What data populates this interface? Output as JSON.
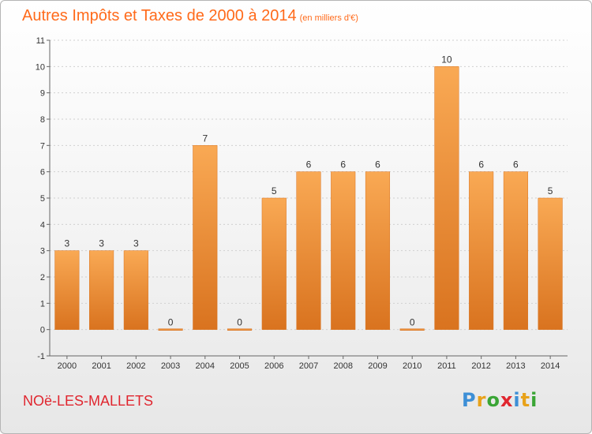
{
  "header": {
    "title": "Autres Impôts et Taxes de 2000 à 2014",
    "subtitle": "(en milliers d'€)"
  },
  "footer": {
    "commune": "NOë-LES-MALLETS",
    "logo_letters": [
      "P",
      "r",
      "o",
      "x",
      "i",
      "t",
      "i"
    ],
    "logo_colors": [
      "#3d8fd6",
      "#e8a21a",
      "#3aa535",
      "#e0262f",
      "#3d8fd6",
      "#e8a21a",
      "#3aa535"
    ]
  },
  "chart_data": {
    "type": "bar",
    "categories": [
      "2000",
      "2001",
      "2002",
      "2003",
      "2004",
      "2005",
      "2006",
      "2007",
      "2008",
      "2009",
      "2010",
      "2011",
      "2012",
      "2013",
      "2014"
    ],
    "values": [
      3,
      3,
      3,
      0,
      7,
      0,
      5,
      6,
      6,
      6,
      0,
      10,
      6,
      6,
      5
    ],
    "data_labels": [
      "3",
      "3",
      "3",
      "0",
      "7",
      "0",
      "5",
      "6",
      "6",
      "6",
      "0",
      "10",
      "6",
      "6",
      "5"
    ],
    "ylim": [
      -1,
      11
    ],
    "yticks": [
      "-1",
      "0",
      "1",
      "2",
      "3",
      "4",
      "5",
      "6",
      "7",
      "8",
      "9",
      "10",
      "11"
    ],
    "xlabel": "",
    "ylabel": "",
    "grid": true,
    "bar_color_top": "#f9a954",
    "bar_color_bottom": "#d9731f"
  }
}
